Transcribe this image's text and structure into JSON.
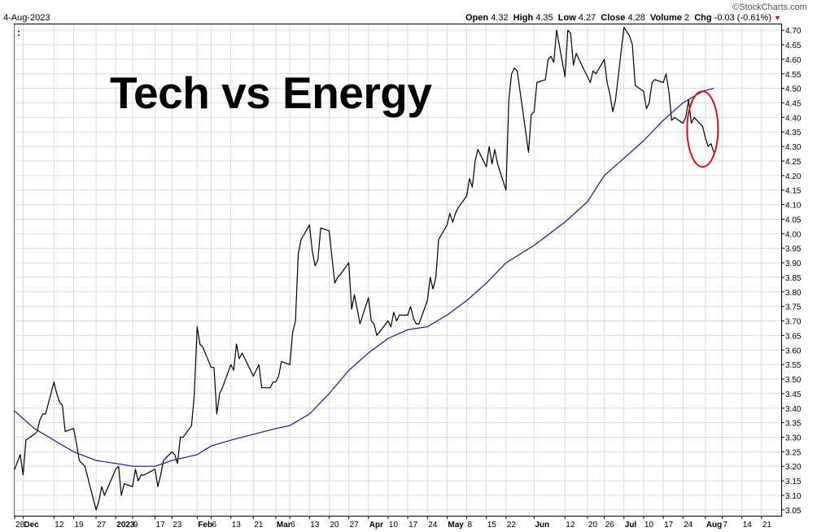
{
  "header": {
    "date": "4-Aug-2023",
    "quote_label_open": "Open",
    "quote_open": "4.32",
    "quote_label_high": "High",
    "quote_high": "4.35",
    "quote_label_low": "Low",
    "quote_low": "4.27",
    "quote_label_close": "Close",
    "quote_close": "4.28",
    "quote_label_volume": "Volume",
    "quote_volume": "2",
    "quote_label_chg": "Chg",
    "quote_chg": "-0.03 (-0.61%)",
    "watermark": "©StockCharts.com"
  },
  "colors": {
    "price_line": "#000000",
    "ma_line": "#1a1a8c",
    "annotation_circle": "#e01010",
    "grid": "#dcdcdc"
  },
  "chart_data": {
    "type": "line",
    "title": "Tech vs Energy",
    "legend_marker": ":",
    "xlabel": "",
    "ylabel": "",
    "ylim": [
      3.03,
      4.72
    ],
    "grid": true,
    "y_axis_position": "right",
    "x_date_range": [
      "2022-11-28",
      "2023-08-28"
    ],
    "x_ticks": [
      {
        "date": "2022-11-28",
        "label": "28",
        "bold": false
      },
      {
        "date": "2022-12-01",
        "label": "Dec",
        "bold": true
      },
      {
        "date": "2022-12-12",
        "label": "12",
        "bold": false
      },
      {
        "date": "2022-12-19",
        "label": "19",
        "bold": false
      },
      {
        "date": "2022-12-27",
        "label": "27",
        "bold": false
      },
      {
        "date": "2023-01-03",
        "label": "2023",
        "bold": true
      },
      {
        "date": "2023-01-09",
        "label": "9",
        "bold": false
      },
      {
        "date": "2023-01-17",
        "label": "17",
        "bold": false
      },
      {
        "date": "2023-01-23",
        "label": "23",
        "bold": false
      },
      {
        "date": "2023-02-01",
        "label": "Feb",
        "bold": true
      },
      {
        "date": "2023-02-06",
        "label": "6",
        "bold": false
      },
      {
        "date": "2023-02-13",
        "label": "13",
        "bold": false
      },
      {
        "date": "2023-02-21",
        "label": "21",
        "bold": false
      },
      {
        "date": "2023-03-01",
        "label": "Mar",
        "bold": true
      },
      {
        "date": "2023-03-06",
        "label": "6",
        "bold": false
      },
      {
        "date": "2023-03-13",
        "label": "13",
        "bold": false
      },
      {
        "date": "2023-03-20",
        "label": "20",
        "bold": false
      },
      {
        "date": "2023-03-27",
        "label": "27",
        "bold": false
      },
      {
        "date": "2023-04-03",
        "label": "Apr",
        "bold": true
      },
      {
        "date": "2023-04-10",
        "label": "10",
        "bold": false
      },
      {
        "date": "2023-04-17",
        "label": "17",
        "bold": false
      },
      {
        "date": "2023-04-24",
        "label": "24",
        "bold": false
      },
      {
        "date": "2023-05-01",
        "label": "May",
        "bold": true
      },
      {
        "date": "2023-05-08",
        "label": "8",
        "bold": false
      },
      {
        "date": "2023-05-15",
        "label": "15",
        "bold": false
      },
      {
        "date": "2023-05-22",
        "label": "22",
        "bold": false
      },
      {
        "date": "2023-06-01",
        "label": "Jun",
        "bold": true
      },
      {
        "date": "2023-06-12",
        "label": "12",
        "bold": false
      },
      {
        "date": "2023-06-20",
        "label": "20",
        "bold": false
      },
      {
        "date": "2023-06-26",
        "label": "26",
        "bold": false
      },
      {
        "date": "2023-07-03",
        "label": "Jul",
        "bold": true
      },
      {
        "date": "2023-07-10",
        "label": "10",
        "bold": false
      },
      {
        "date": "2023-07-17",
        "label": "17",
        "bold": false
      },
      {
        "date": "2023-07-24",
        "label": "24",
        "bold": false
      },
      {
        "date": "2023-08-01",
        "label": "Aug",
        "bold": true
      },
      {
        "date": "2023-08-07",
        "label": "7",
        "bold": false
      },
      {
        "date": "2023-08-14",
        "label": "14",
        "bold": false
      },
      {
        "date": "2023-08-21",
        "label": "21",
        "bold": false
      }
    ],
    "y_ticks": [
      "3.05",
      "3.10",
      "3.15",
      "3.20",
      "3.25",
      "3.30",
      "3.35",
      "3.40",
      "3.45",
      "3.50",
      "3.55",
      "3.60",
      "3.65",
      "3.70",
      "3.75",
      "3.80",
      "3.85",
      "3.90",
      "3.95",
      "4.00",
      "4.05",
      "4.10",
      "4.15",
      "4.20",
      "4.25",
      "4.30",
      "4.35",
      "4.40",
      "4.45",
      "4.50",
      "4.55",
      "4.60",
      "4.65",
      "4.70"
    ],
    "series": [
      {
        "key": "ratio",
        "points": [
          [
            "2022-11-28",
            3.19
          ],
          [
            "2022-11-30",
            3.24
          ],
          [
            "2022-12-01",
            3.17
          ],
          [
            "2022-12-02",
            3.29
          ],
          [
            "2022-12-05",
            3.31
          ],
          [
            "2022-12-06",
            3.32
          ],
          [
            "2022-12-07",
            3.36
          ],
          [
            "2022-12-08",
            3.38
          ],
          [
            "2022-12-09",
            3.38
          ],
          [
            "2022-12-12",
            3.49
          ],
          [
            "2022-12-13",
            3.45
          ],
          [
            "2022-12-14",
            3.42
          ],
          [
            "2022-12-15",
            3.41
          ],
          [
            "2022-12-16",
            3.32
          ],
          [
            "2022-12-19",
            3.33
          ],
          [
            "2022-12-20",
            3.28
          ],
          [
            "2022-12-21",
            3.22
          ],
          [
            "2022-12-22",
            3.21
          ],
          [
            "2022-12-23",
            3.2
          ],
          [
            "2022-12-27",
            3.05
          ],
          [
            "2022-12-28",
            3.08
          ],
          [
            "2022-12-29",
            3.13
          ],
          [
            "2022-12-30",
            3.1
          ],
          [
            "2023-01-03",
            3.19
          ],
          [
            "2023-01-04",
            3.2
          ],
          [
            "2023-01-05",
            3.1
          ],
          [
            "2023-01-06",
            3.14
          ],
          [
            "2023-01-09",
            3.13
          ],
          [
            "2023-01-10",
            3.19
          ],
          [
            "2023-01-11",
            3.15
          ],
          [
            "2023-01-12",
            3.17
          ],
          [
            "2023-01-13",
            3.17
          ],
          [
            "2023-01-17",
            3.19
          ],
          [
            "2023-01-18",
            3.13
          ],
          [
            "2023-01-19",
            3.17
          ],
          [
            "2023-01-20",
            3.22
          ],
          [
            "2023-01-23",
            3.25
          ],
          [
            "2023-01-24",
            3.24
          ],
          [
            "2023-01-25",
            3.21
          ],
          [
            "2023-01-26",
            3.3
          ],
          [
            "2023-01-27",
            3.3
          ],
          [
            "2023-01-30",
            3.34
          ],
          [
            "2023-01-31",
            3.45
          ],
          [
            "2023-02-01",
            3.68
          ],
          [
            "2023-02-02",
            3.62
          ],
          [
            "2023-02-03",
            3.61
          ],
          [
            "2023-02-06",
            3.54
          ],
          [
            "2023-02-07",
            3.54
          ],
          [
            "2023-02-08",
            3.38
          ],
          [
            "2023-02-09",
            3.45
          ],
          [
            "2023-02-10",
            3.47
          ],
          [
            "2023-02-13",
            3.55
          ],
          [
            "2023-02-14",
            3.53
          ],
          [
            "2023-02-15",
            3.62
          ],
          [
            "2023-02-16",
            3.57
          ],
          [
            "2023-02-17",
            3.59
          ],
          [
            "2023-02-21",
            3.51
          ],
          [
            "2023-02-22",
            3.53
          ],
          [
            "2023-02-23",
            3.55
          ],
          [
            "2023-02-24",
            3.47
          ],
          [
            "2023-02-27",
            3.47
          ],
          [
            "2023-02-28",
            3.49
          ],
          [
            "2023-03-01",
            3.49
          ],
          [
            "2023-03-02",
            3.51
          ],
          [
            "2023-03-03",
            3.56
          ],
          [
            "2023-03-06",
            3.55
          ],
          [
            "2023-03-07",
            3.66
          ],
          [
            "2023-03-08",
            3.7
          ],
          [
            "2023-03-09",
            3.93
          ],
          [
            "2023-03-10",
            3.98
          ],
          [
            "2023-03-13",
            4.03
          ],
          [
            "2023-03-14",
            3.94
          ],
          [
            "2023-03-15",
            3.89
          ],
          [
            "2023-03-16",
            3.91
          ],
          [
            "2023-03-17",
            4.02
          ],
          [
            "2023-03-20",
            4.01
          ],
          [
            "2023-03-21",
            3.92
          ],
          [
            "2023-03-22",
            3.83
          ],
          [
            "2023-03-23",
            3.85
          ],
          [
            "2023-03-24",
            3.86
          ],
          [
            "2023-03-27",
            3.9
          ],
          [
            "2023-03-28",
            3.74
          ],
          [
            "2023-03-29",
            3.79
          ],
          [
            "2023-03-30",
            3.74
          ],
          [
            "2023-03-31",
            3.69
          ],
          [
            "2023-04-03",
            3.78
          ],
          [
            "2023-04-04",
            3.7
          ],
          [
            "2023-04-05",
            3.69
          ],
          [
            "2023-04-06",
            3.65
          ],
          [
            "2023-04-10",
            3.7
          ],
          [
            "2023-04-11",
            3.68
          ],
          [
            "2023-04-12",
            3.73
          ],
          [
            "2023-04-13",
            3.7
          ],
          [
            "2023-04-14",
            3.72
          ],
          [
            "2023-04-17",
            3.72
          ],
          [
            "2023-04-18",
            3.75
          ],
          [
            "2023-04-19",
            3.71
          ],
          [
            "2023-04-20",
            3.69
          ],
          [
            "2023-04-21",
            3.69
          ],
          [
            "2023-04-24",
            3.77
          ],
          [
            "2023-04-25",
            3.85
          ],
          [
            "2023-04-26",
            3.81
          ],
          [
            "2023-04-27",
            3.85
          ],
          [
            "2023-04-28",
            3.98
          ],
          [
            "2023-05-01",
            4.03
          ],
          [
            "2023-05-02",
            4.07
          ],
          [
            "2023-05-03",
            4.04
          ],
          [
            "2023-05-04",
            4.07
          ],
          [
            "2023-05-05",
            4.09
          ],
          [
            "2023-05-08",
            4.13
          ],
          [
            "2023-05-09",
            4.19
          ],
          [
            "2023-05-10",
            4.16
          ],
          [
            "2023-05-11",
            4.25
          ],
          [
            "2023-05-12",
            4.29
          ],
          [
            "2023-05-15",
            4.23
          ],
          [
            "2023-05-16",
            4.3
          ],
          [
            "2023-05-17",
            4.24
          ],
          [
            "2023-05-18",
            4.29
          ],
          [
            "2023-05-19",
            4.24
          ],
          [
            "2023-05-22",
            4.15
          ],
          [
            "2023-05-23",
            4.46
          ],
          [
            "2023-05-24",
            4.55
          ],
          [
            "2023-05-25",
            4.57
          ],
          [
            "2023-05-26",
            4.56
          ],
          [
            "2023-05-30",
            4.28
          ],
          [
            "2023-05-31",
            4.41
          ],
          [
            "2023-06-01",
            4.42
          ],
          [
            "2023-06-02",
            4.52
          ],
          [
            "2023-06-05",
            4.53
          ],
          [
            "2023-06-06",
            4.6
          ],
          [
            "2023-06-07",
            4.61
          ],
          [
            "2023-06-08",
            4.59
          ],
          [
            "2023-06-09",
            4.7
          ],
          [
            "2023-06-12",
            4.54
          ],
          [
            "2023-06-13",
            4.7
          ],
          [
            "2023-06-14",
            4.69
          ],
          [
            "2023-06-15",
            4.58
          ],
          [
            "2023-06-16",
            4.62
          ],
          [
            "2023-06-20",
            4.54
          ],
          [
            "2023-06-21",
            4.52
          ],
          [
            "2023-06-22",
            4.56
          ],
          [
            "2023-06-23",
            4.55
          ],
          [
            "2023-06-26",
            4.6
          ],
          [
            "2023-06-27",
            4.52
          ],
          [
            "2023-06-28",
            4.48
          ],
          [
            "2023-06-29",
            4.42
          ],
          [
            "2023-06-30",
            4.46
          ],
          [
            "2023-07-03",
            4.71
          ],
          [
            "2023-07-05",
            4.68
          ],
          [
            "2023-07-06",
            4.65
          ],
          [
            "2023-07-07",
            4.51
          ],
          [
            "2023-07-10",
            4.49
          ],
          [
            "2023-07-11",
            4.43
          ],
          [
            "2023-07-12",
            4.45
          ],
          [
            "2023-07-13",
            4.52
          ],
          [
            "2023-07-14",
            4.53
          ],
          [
            "2023-07-17",
            4.52
          ],
          [
            "2023-07-18",
            4.55
          ],
          [
            "2023-07-19",
            4.49
          ],
          [
            "2023-07-20",
            4.39
          ],
          [
            "2023-07-21",
            4.4
          ],
          [
            "2023-07-24",
            4.38
          ],
          [
            "2023-07-25",
            4.4
          ],
          [
            "2023-07-26",
            4.46
          ],
          [
            "2023-07-27",
            4.38
          ],
          [
            "2023-07-28",
            4.4
          ],
          [
            "2023-07-31",
            4.37
          ],
          [
            "2023-08-01",
            4.33
          ],
          [
            "2023-08-02",
            4.3
          ],
          [
            "2023-08-03",
            4.31
          ],
          [
            "2023-08-04",
            4.28
          ]
        ]
      },
      {
        "key": "moving_average",
        "points": [
          [
            "2022-11-28",
            3.39
          ],
          [
            "2022-12-05",
            3.33
          ],
          [
            "2022-12-12",
            3.29
          ],
          [
            "2022-12-19",
            3.25
          ],
          [
            "2022-12-27",
            3.22
          ],
          [
            "2023-01-03",
            3.21
          ],
          [
            "2023-01-09",
            3.2
          ],
          [
            "2023-01-17",
            3.2
          ],
          [
            "2023-01-23",
            3.22
          ],
          [
            "2023-02-01",
            3.24
          ],
          [
            "2023-02-06",
            3.27
          ],
          [
            "2023-02-13",
            3.29
          ],
          [
            "2023-02-21",
            3.31
          ],
          [
            "2023-03-01",
            3.33
          ],
          [
            "2023-03-06",
            3.34
          ],
          [
            "2023-03-13",
            3.38
          ],
          [
            "2023-03-20",
            3.45
          ],
          [
            "2023-03-27",
            3.53
          ],
          [
            "2023-04-03",
            3.59
          ],
          [
            "2023-04-10",
            3.64
          ],
          [
            "2023-04-17",
            3.67
          ],
          [
            "2023-04-24",
            3.68
          ],
          [
            "2023-05-01",
            3.72
          ],
          [
            "2023-05-08",
            3.77
          ],
          [
            "2023-05-15",
            3.83
          ],
          [
            "2023-05-22",
            3.9
          ],
          [
            "2023-06-01",
            3.96
          ],
          [
            "2023-06-12",
            4.04
          ],
          [
            "2023-06-20",
            4.11
          ],
          [
            "2023-06-26",
            4.2
          ],
          [
            "2023-07-03",
            4.26
          ],
          [
            "2023-07-10",
            4.32
          ],
          [
            "2023-07-17",
            4.39
          ],
          [
            "2023-07-24",
            4.45
          ],
          [
            "2023-07-31",
            4.49
          ],
          [
            "2023-08-04",
            4.5
          ]
        ]
      }
    ],
    "annotation": {
      "type": "circle",
      "color": "#e01010",
      "center": [
        "2023-07-31",
        4.36
      ],
      "radius_y": 0.13,
      "radius_x_days": 5.5
    }
  }
}
